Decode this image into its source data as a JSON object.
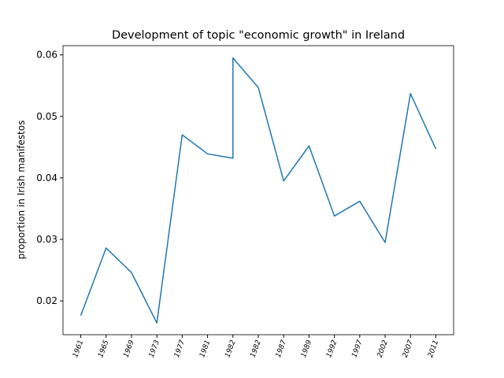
{
  "chart_data": {
    "type": "line",
    "title": "Development of topic \"economic growth\" in Ireland",
    "y_label": "proportion in Irish manifestos",
    "x": [
      0,
      1,
      2,
      3,
      4,
      5,
      6,
      6,
      7,
      8,
      9,
      10,
      11,
      12,
      13,
      14
    ],
    "series": [
      {
        "name": "economic growth",
        "color": "#1f77b4",
        "values": [
          0.0176,
          0.0286,
          0.0246,
          0.0164,
          0.047,
          0.0439,
          0.0432,
          0.0595,
          0.0547,
          0.0395,
          0.0452,
          0.0338,
          0.0362,
          0.0295,
          0.0537,
          0.0447
        ]
      }
    ],
    "xlim": [
      -0.7,
      14.7
    ],
    "xticks": [
      {
        "value": 0,
        "label": "1961"
      },
      {
        "value": 1,
        "label": "1965"
      },
      {
        "value": 2,
        "label": "1969"
      },
      {
        "value": 3,
        "label": "1973"
      },
      {
        "value": 4,
        "label": "1977"
      },
      {
        "value": 5,
        "label": "1981"
      },
      {
        "value": 6,
        "label": "1982"
      },
      {
        "value": 7,
        "label": "1982"
      },
      {
        "value": 8,
        "label": "1987"
      },
      {
        "value": 9,
        "label": "1989"
      },
      {
        "value": 10,
        "label": "1992"
      },
      {
        "value": 11,
        "label": "1997"
      },
      {
        "value": 12,
        "label": "2002"
      },
      {
        "value": 13,
        "label": "2007"
      },
      {
        "value": 14,
        "label": "2011"
      }
    ],
    "ylim": [
      0.0145,
      0.0615
    ],
    "yticks": [
      0.02,
      0.03,
      0.04,
      0.05,
      0.06
    ]
  }
}
